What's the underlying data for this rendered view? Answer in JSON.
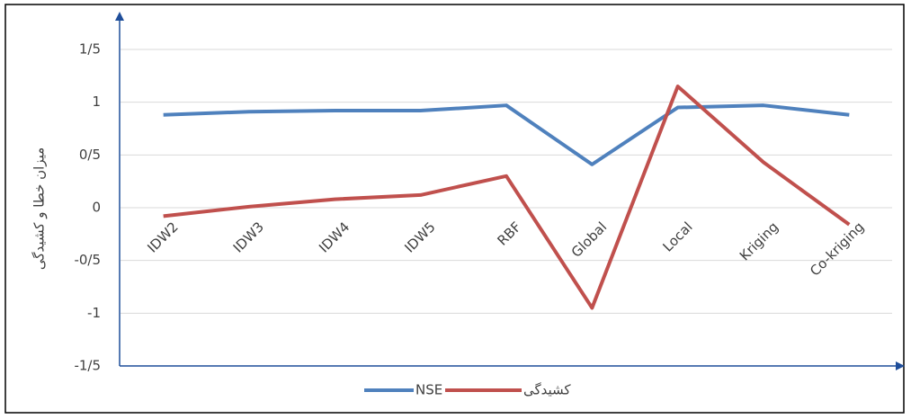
{
  "chart_data": {
    "type": "line",
    "y_label": "میزان خطا و کشیدگی",
    "categories": [
      "IDW2",
      "IDW3",
      "IDW4",
      "IDW5",
      "RBF",
      "Global",
      "Local",
      "Kriging",
      "Co-kriging"
    ],
    "series": [
      {
        "name": "NSE",
        "color": "#4f81bd",
        "values": [
          0.88,
          0.91,
          0.92,
          0.92,
          0.97,
          0.41,
          0.95,
          0.97,
          0.88
        ]
      },
      {
        "name": "کشیدگی",
        "color": "#c0504d",
        "values": [
          -0.08,
          0.01,
          0.08,
          0.12,
          0.3,
          -0.95,
          1.15,
          0.43,
          -0.16
        ]
      }
    ],
    "ylim": [
      -1.5,
      1.5
    ],
    "yticks": [
      {
        "value": -1.5,
        "label": "-1/5"
      },
      {
        "value": -1,
        "label": "-1"
      },
      {
        "value": -0.5,
        "label": "-0/5"
      },
      {
        "value": 0,
        "label": "0"
      },
      {
        "value": 0.5,
        "label": "0/5"
      },
      {
        "value": 1,
        "label": "1"
      },
      {
        "value": 1.5,
        "label": "1/5"
      }
    ],
    "grid": true
  }
}
